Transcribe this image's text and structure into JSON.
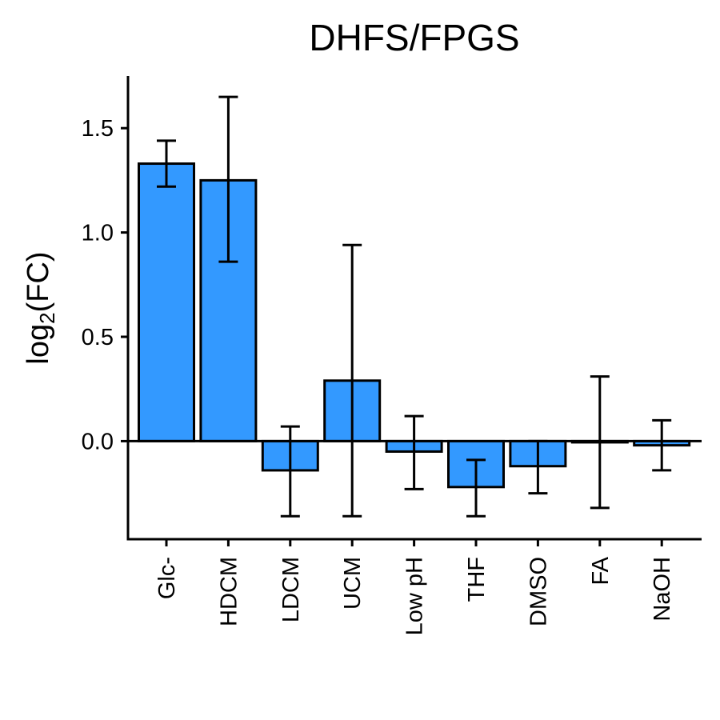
{
  "chart_data": {
    "type": "bar",
    "title": "DHFS/FPGS",
    "ylabel": {
      "main": "log",
      "subscript": "2",
      "suffix": "(FC)"
    },
    "xlabel": "",
    "categories": [
      "Glc-",
      "HDCM",
      "LDCM",
      "UCM",
      "Low pH",
      "THF",
      "DMSO",
      "FA",
      "NaOH"
    ],
    "values": [
      1.33,
      1.25,
      -0.14,
      0.29,
      -0.05,
      -0.22,
      -0.12,
      -0.005,
      -0.02
    ],
    "error_low": [
      1.22,
      0.86,
      -0.36,
      -0.36,
      -0.23,
      -0.36,
      -0.25,
      -0.32,
      -0.14
    ],
    "error_high": [
      1.44,
      1.65,
      0.07,
      0.94,
      0.12,
      -0.09,
      0.0,
      0.31,
      0.1
    ],
    "ylim": [
      -0.47,
      1.75
    ],
    "yticks": [
      0.0,
      0.5,
      1.0,
      1.5
    ],
    "ytick_labels": [
      "0.0",
      "0.5",
      "1.0",
      "1.5"
    ],
    "grid": false,
    "bar_color": "#3399FF",
    "edge_color": "#000000"
  }
}
